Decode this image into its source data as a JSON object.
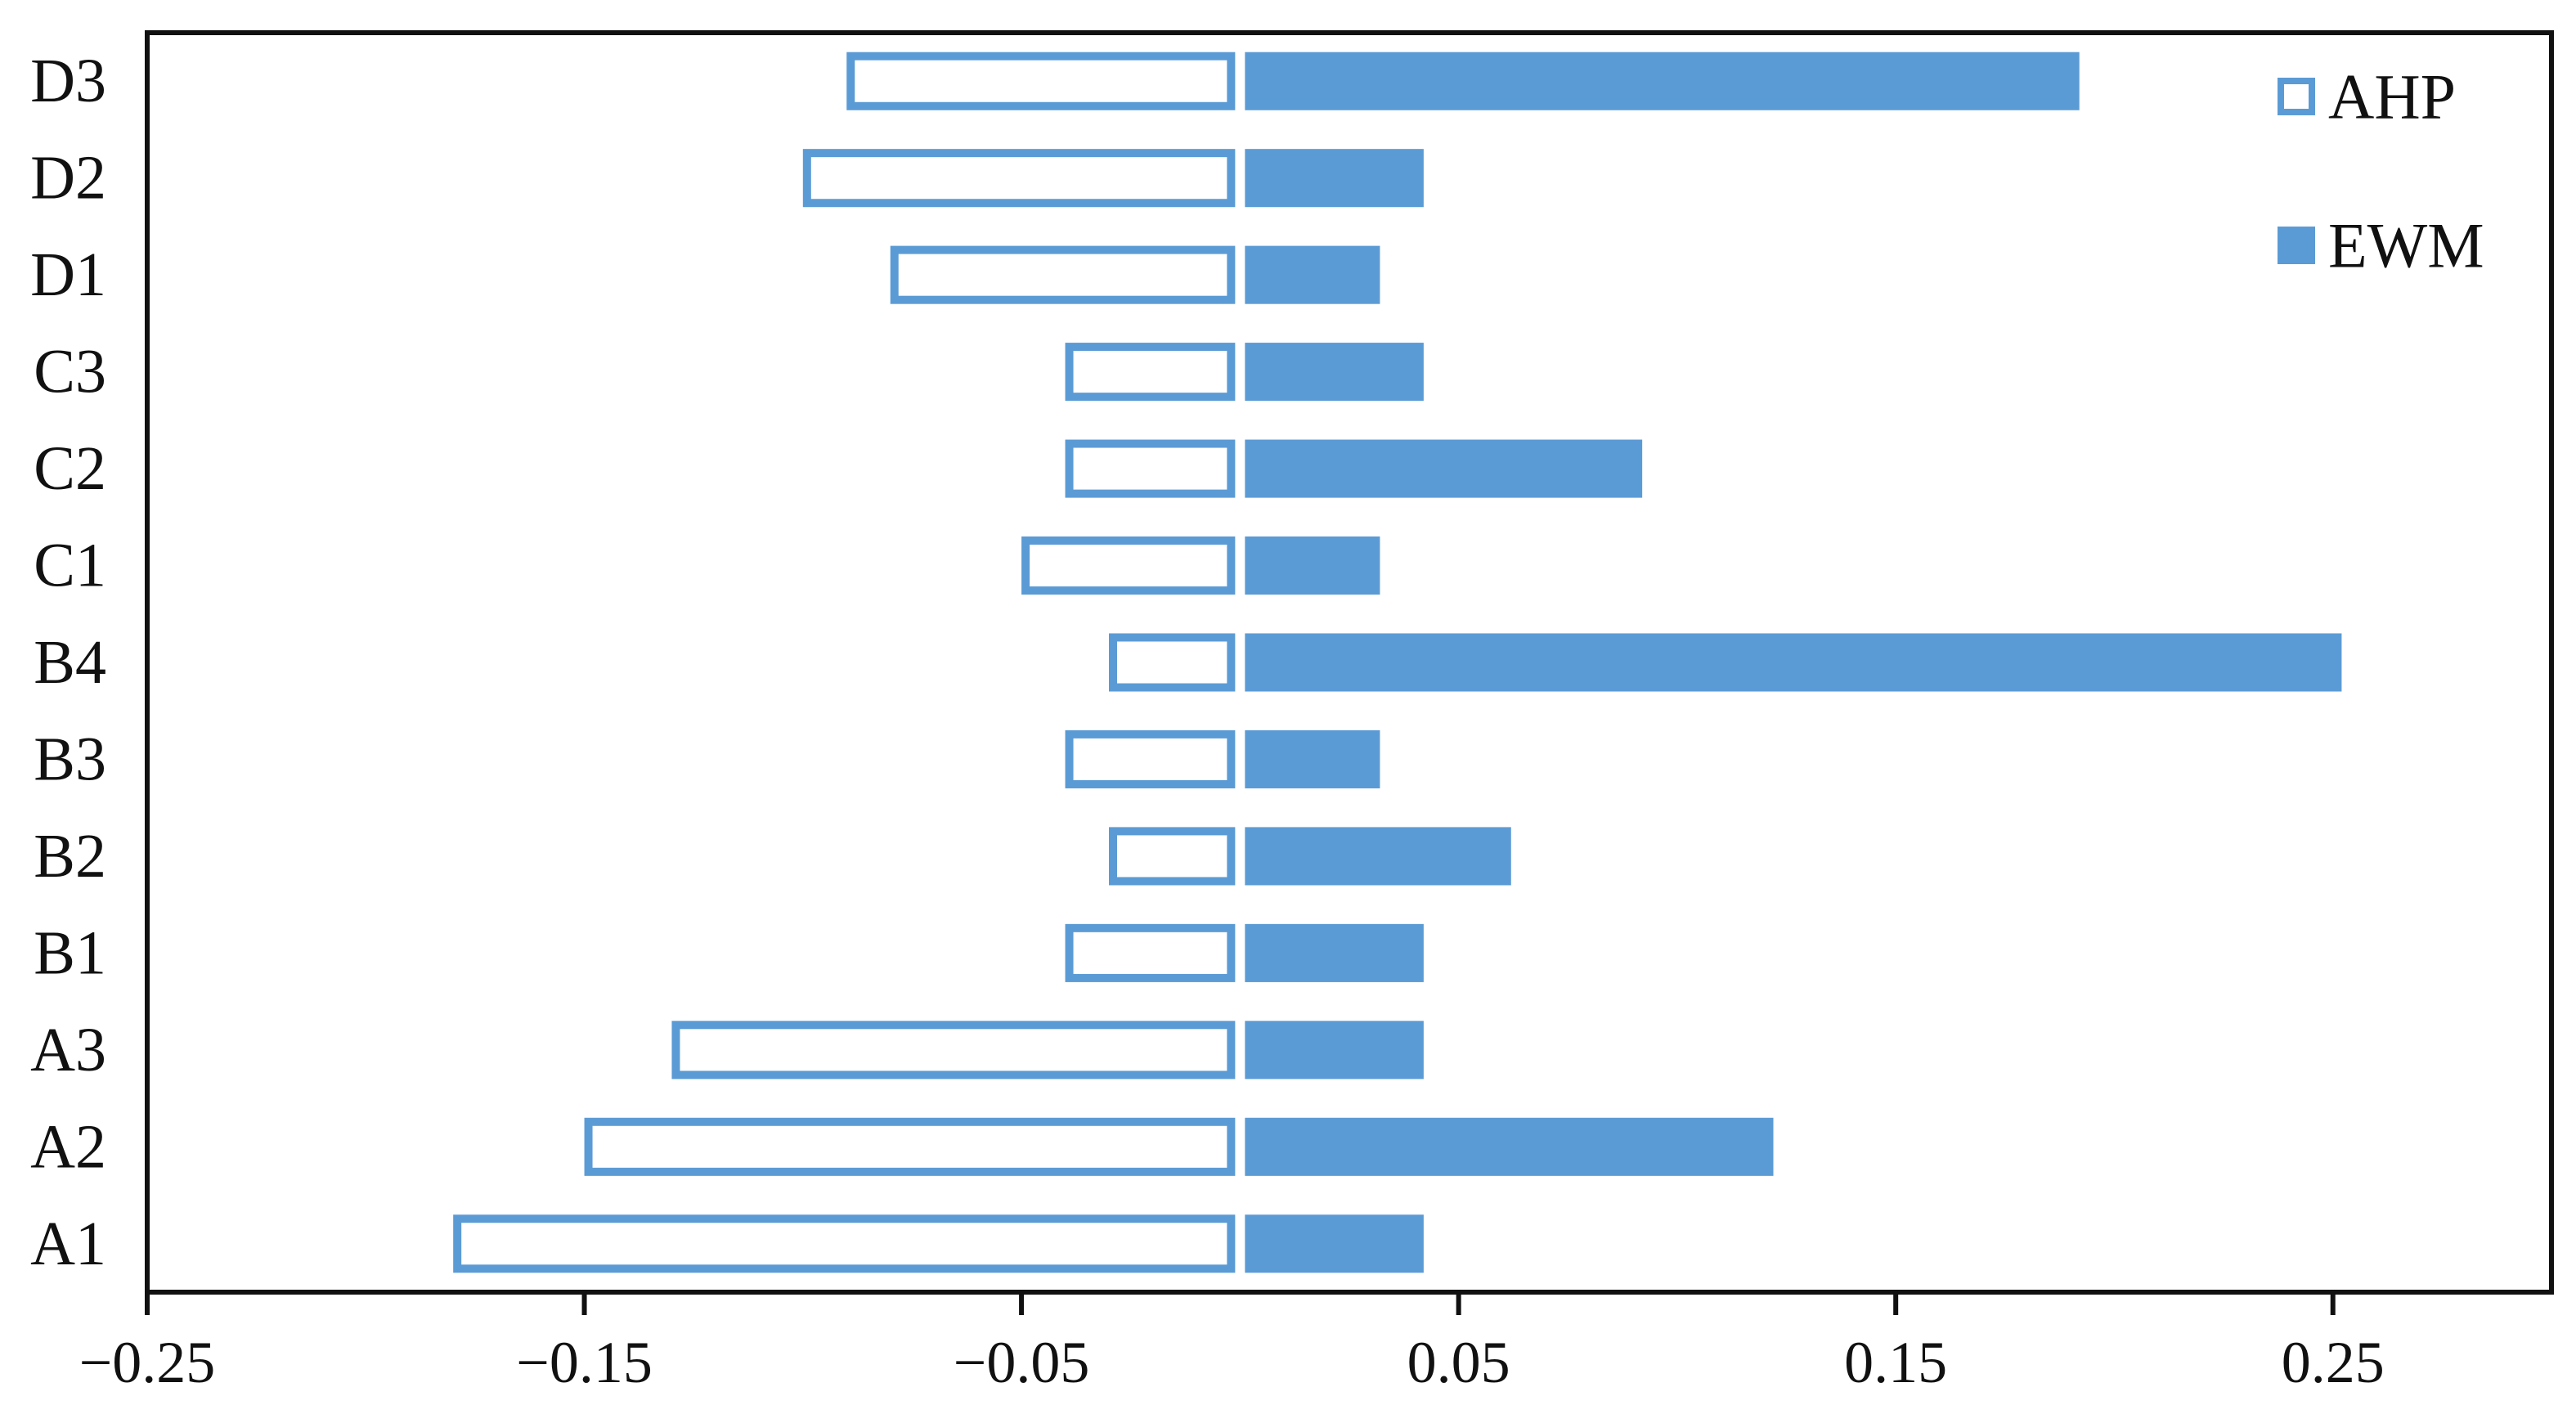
{
  "chart_data": {
    "type": "bar",
    "orientation": "horizontal",
    "title": "",
    "xlabel": "",
    "ylabel": "",
    "xlim": [
      -0.25,
      0.3
    ],
    "xticks": [
      -0.25,
      -0.15,
      -0.05,
      0.05,
      0.15,
      0.25
    ],
    "xtick_labels": [
      "−0.25",
      "−0.15",
      "−0.05",
      "0.05",
      "0.15",
      "0.25"
    ],
    "grid": false,
    "legend_position": "top-right",
    "categories": [
      "A1",
      "A2",
      "A3",
      "B1",
      "B2",
      "B3",
      "B4",
      "C1",
      "C2",
      "C3",
      "D1",
      "D2",
      "D3"
    ],
    "series": [
      {
        "name": "AHP",
        "style": "outline",
        "color": "#5b9bd5",
        "values": [
          -0.18,
          -0.15,
          -0.13,
          -0.04,
          -0.03,
          -0.04,
          -0.03,
          -0.05,
          -0.04,
          -0.04,
          -0.08,
          -0.1,
          -0.09
        ]
      },
      {
        "name": "EWM",
        "style": "filled",
        "color": "#5b9bd5",
        "values": [
          0.042,
          0.122,
          0.042,
          0.042,
          0.062,
          0.032,
          0.252,
          0.032,
          0.092,
          0.042,
          0.032,
          0.042,
          0.192
        ]
      }
    ]
  }
}
